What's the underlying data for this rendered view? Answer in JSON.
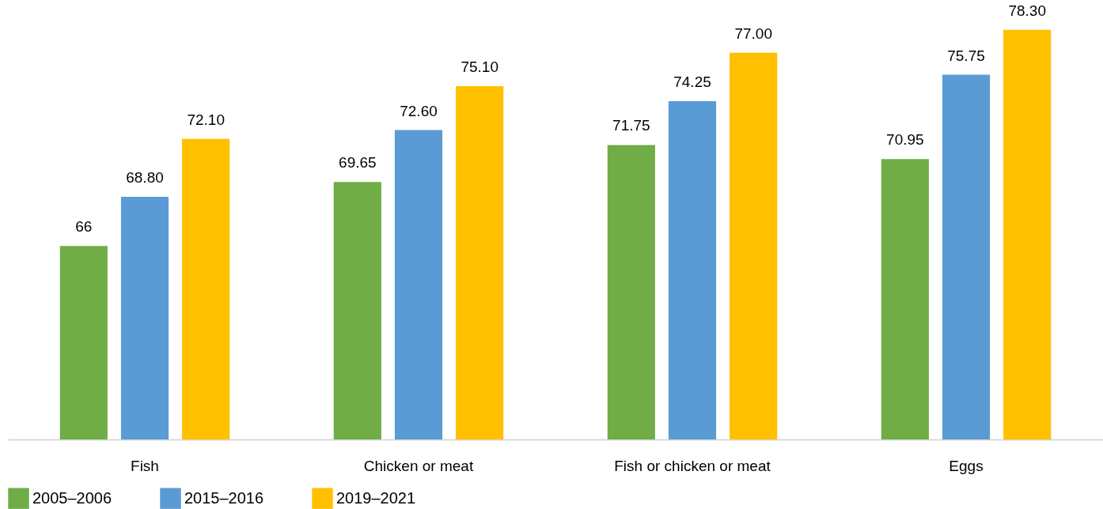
{
  "chart_data": {
    "type": "bar",
    "categories": [
      "Fish",
      "Chicken or meat",
      "Fish or chicken or meat",
      "Eggs"
    ],
    "ylim": [
      55,
      80
    ],
    "series": [
      {
        "name": "2005–2006",
        "color": "#70ad47",
        "values": [
          66,
          69.65,
          71.75,
          70.95
        ],
        "value_labels": [
          "66",
          "69.65",
          "71.75",
          "70.95"
        ]
      },
      {
        "name": "2015–2016",
        "color": "#5b9bd5",
        "values": [
          68.8,
          72.6,
          74.25,
          75.75
        ],
        "value_labels": [
          "68.80",
          "72.60",
          "74.25",
          "75.75"
        ]
      },
      {
        "name": "2019–2021",
        "color": "#ffc000",
        "values": [
          72.1,
          75.1,
          77,
          78.3
        ],
        "value_labels": [
          "72.10",
          "75.10",
          "77.00",
          "78.30"
        ]
      }
    ],
    "legend": "bottom",
    "grid": false
  }
}
